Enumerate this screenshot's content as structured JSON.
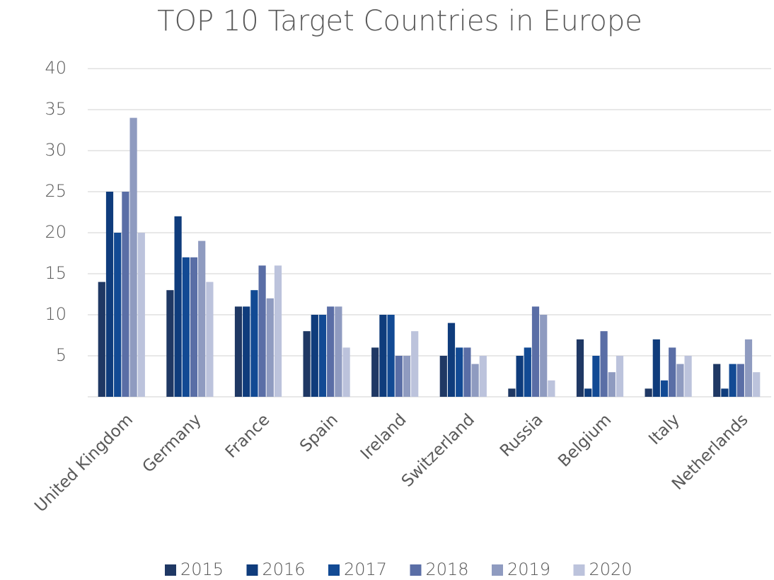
{
  "chart_data": {
    "type": "bar",
    "title": "TOP 10 Target Countries in Europe",
    "categories": [
      "United Kingdom",
      "Germany",
      "France",
      "Spain",
      "Ireland",
      "Switzerland",
      "Russia",
      "Belgium",
      "Italy",
      "Netherlands"
    ],
    "series": [
      {
        "name": "2015",
        "color": "#1f3864",
        "values": [
          14,
          13,
          11,
          8,
          6,
          5,
          1,
          7,
          1,
          4
        ]
      },
      {
        "name": "2016",
        "color": "#0f3c7c",
        "values": [
          25,
          22,
          11,
          10,
          10,
          9,
          5,
          1,
          7,
          1
        ]
      },
      {
        "name": "2017",
        "color": "#124a94",
        "values": [
          20,
          17,
          13,
          10,
          10,
          6,
          6,
          5,
          2,
          4
        ]
      },
      {
        "name": "2018",
        "color": "#5a6ea6",
        "values": [
          25,
          17,
          16,
          11,
          5,
          6,
          11,
          8,
          6,
          4
        ]
      },
      {
        "name": "2019",
        "color": "#8f9bc0",
        "values": [
          34,
          19,
          12,
          11,
          5,
          4,
          10,
          3,
          4,
          7
        ]
      },
      {
        "name": "2020",
        "color": "#bcc3dc",
        "values": [
          20,
          14,
          16,
          6,
          8,
          5,
          2,
          5,
          5,
          3
        ]
      }
    ],
    "ylim": [
      0,
      40
    ],
    "yticks": [
      5,
      10,
      15,
      20,
      25,
      30,
      35,
      40
    ],
    "grid": true,
    "legend": "bottom"
  }
}
